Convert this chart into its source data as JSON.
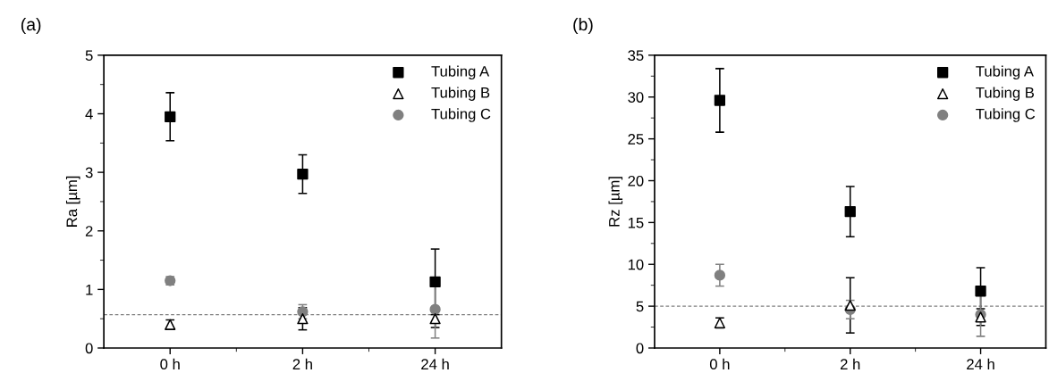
{
  "chart_data": [
    {
      "type": "scatter",
      "ylabel": "Ra [µm]",
      "annotations": [
        "(a)"
      ],
      "categories": [
        "0 h",
        "2 h",
        "24 h"
      ],
      "ylim": [
        0,
        5
      ],
      "yticks": [
        0,
        1,
        2,
        3,
        4,
        5
      ],
      "grid": false,
      "legend": "top right",
      "ref_lines": [
        {
          "axis": "y",
          "value": 0.57,
          "color": "#808080",
          "line_style": "dashed"
        }
      ],
      "series": [
        {
          "name": "Tubing A",
          "color": "#000000",
          "marker": "square",
          "values": [
            3.95,
            2.97,
            1.13
          ],
          "errors": [
            0.41,
            0.33,
            0.56
          ]
        },
        {
          "name": "Tubing B",
          "color": "#000000",
          "marker": "triangle",
          "values": [
            0.4,
            0.5,
            0.5
          ],
          "errors": [
            0.08,
            0.19,
            0.15
          ]
        },
        {
          "name": "Tubing C",
          "color": "#808080",
          "marker": "circle",
          "values": [
            1.15,
            0.62,
            0.66
          ],
          "errors": [
            0.07,
            0.12,
            0.49
          ]
        }
      ]
    },
    {
      "type": "scatter",
      "ylabel": "Rz [µm]",
      "annotations": [
        "(b)"
      ],
      "categories": [
        "0 h",
        "2 h",
        "24 h"
      ],
      "ylim": [
        0,
        35
      ],
      "yticks": [
        0,
        5,
        10,
        15,
        20,
        25,
        30,
        35
      ],
      "grid": false,
      "legend": "top right",
      "ref_lines": [
        {
          "axis": "y",
          "value": 5.0,
          "color": "#808080",
          "line_style": "dashed"
        }
      ],
      "series": [
        {
          "name": "Tubing A",
          "color": "#000000",
          "marker": "square",
          "values": [
            29.6,
            16.3,
            6.8
          ],
          "errors": [
            3.8,
            3.0,
            2.8
          ]
        },
        {
          "name": "Tubing B",
          "color": "#000000",
          "marker": "triangle",
          "values": [
            3.0,
            5.1,
            3.7
          ],
          "errors": [
            0.6,
            3.3,
            1.0
          ]
        },
        {
          "name": "Tubing C",
          "color": "#808080",
          "marker": "circle",
          "values": [
            8.7,
            4.6,
            4.0
          ],
          "errors": [
            1.3,
            1.1,
            2.6
          ]
        }
      ]
    }
  ]
}
